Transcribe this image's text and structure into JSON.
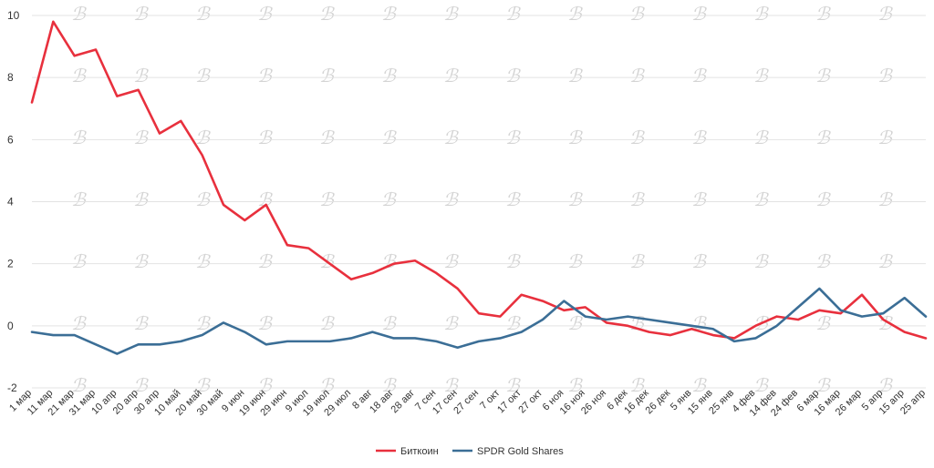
{
  "chart_data": {
    "type": "line",
    "title": "",
    "xlabel": "",
    "ylabel": "",
    "ylim": [
      -2,
      10
    ],
    "yticks": [
      -2,
      0,
      2,
      4,
      6,
      8,
      10
    ],
    "grid": true,
    "legend_position": "bottom-center",
    "categories": [
      "1 мар",
      "11 мар",
      "21 мар",
      "31 мар",
      "10 апр",
      "20 апр",
      "30 апр",
      "10 май",
      "20 май",
      "30 май",
      "9 июн",
      "19 июн",
      "29 июн",
      "9 июл",
      "19 июл",
      "29 июл",
      "8 авг",
      "18 авг",
      "28 авг",
      "7 сен",
      "17 сен",
      "27 сен",
      "7 окт",
      "17 окт",
      "27 окт",
      "6 ноя",
      "16 ноя",
      "26 ноя",
      "6 дек",
      "16 дек",
      "26 дек",
      "5 янв",
      "15 янв",
      "25 янв",
      "4 фев",
      "14 фев",
      "24 фев",
      "6 мар",
      "16 мар",
      "26 мар",
      "5 апр",
      "15 апр",
      "25 апр"
    ],
    "series": [
      {
        "name": "Биткоин",
        "color": "#e8303d",
        "values": [
          7.2,
          9.8,
          8.7,
          8.9,
          7.4,
          7.6,
          6.2,
          6.6,
          5.5,
          3.9,
          3.4,
          3.9,
          2.6,
          2.5,
          2.0,
          1.5,
          1.7,
          2.0,
          2.1,
          1.7,
          1.2,
          0.4,
          0.3,
          1.0,
          0.8,
          0.5,
          0.6,
          0.1,
          0.0,
          -0.2,
          -0.3,
          -0.1,
          -0.3,
          -0.4,
          0.0,
          0.3,
          0.2,
          0.5,
          0.4,
          1.0,
          0.2,
          -0.2,
          -0.4
        ]
      },
      {
        "name": "SPDR Gold Shares",
        "color": "#3b6e96",
        "values": [
          -0.2,
          -0.3,
          -0.3,
          -0.6,
          -0.9,
          -0.6,
          -0.6,
          -0.5,
          -0.3,
          0.1,
          -0.2,
          -0.6,
          -0.5,
          -0.5,
          -0.5,
          -0.4,
          -0.2,
          -0.4,
          -0.4,
          -0.5,
          -0.7,
          -0.5,
          -0.4,
          -0.2,
          0.2,
          0.8,
          0.3,
          0.2,
          0.3,
          0.2,
          0.1,
          0.0,
          -0.1,
          -0.5,
          -0.4,
          0.0,
          0.6,
          1.2,
          0.5,
          0.3,
          0.4,
          0.9,
          0.3
        ]
      }
    ]
  },
  "watermark": {
    "glyph": "ℬ",
    "color": "#d4d4d4"
  }
}
